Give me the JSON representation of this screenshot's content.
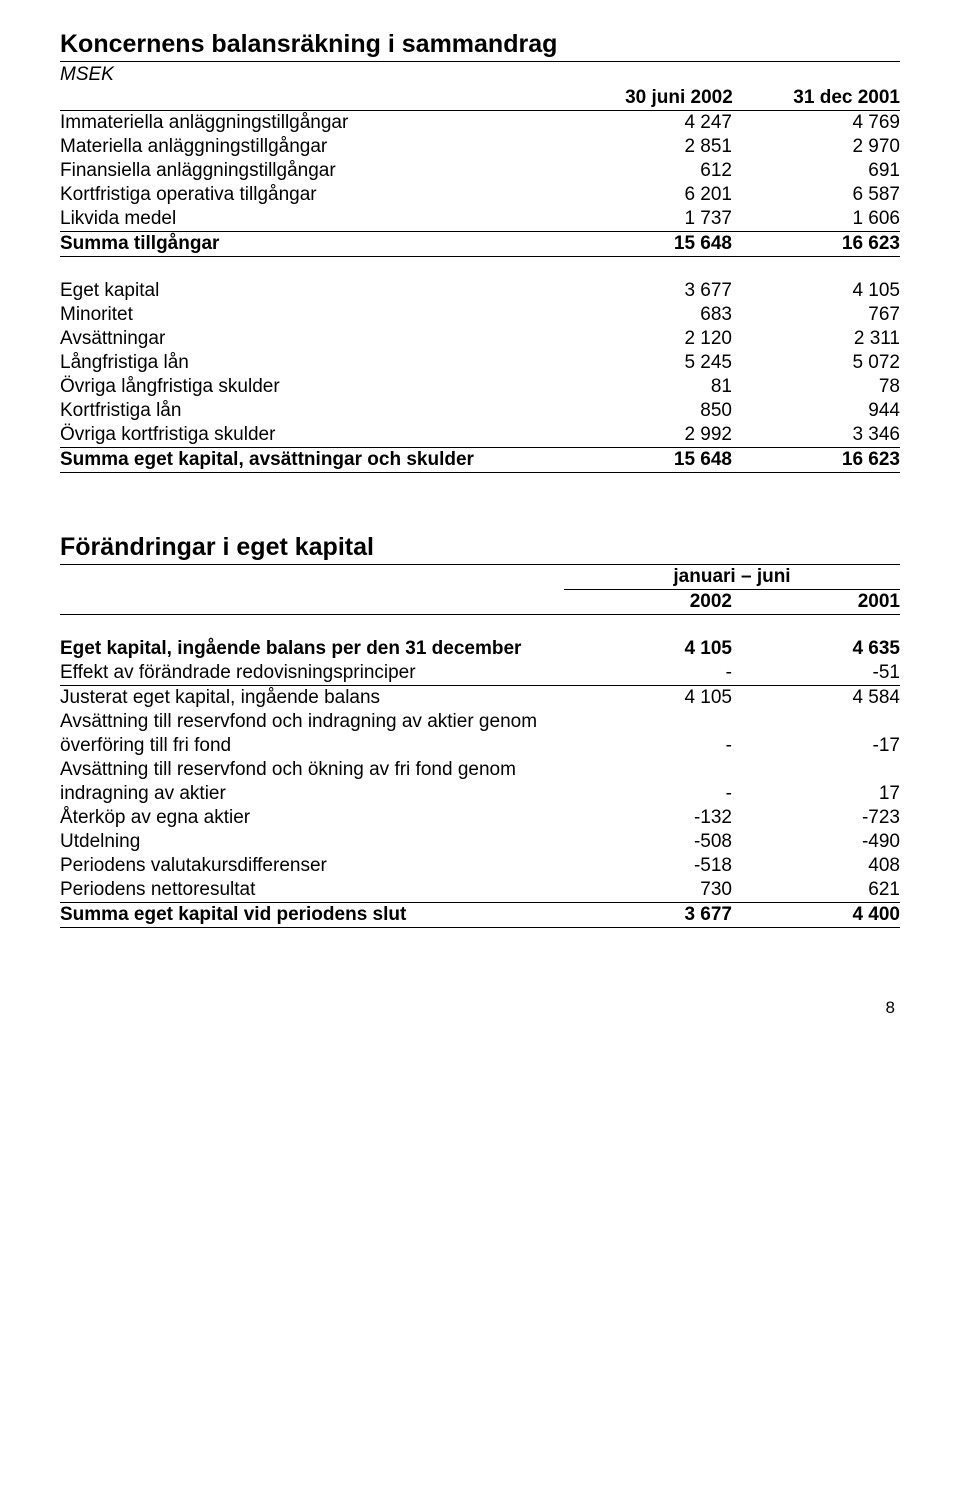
{
  "table1": {
    "title": "Koncernens balansräkning i sammandrag",
    "unit": "MSEK",
    "col_headers": [
      "30 juni 2002",
      "31 dec 2001"
    ],
    "rows_top": [
      {
        "label": "Immateriella anläggningstillgångar",
        "v1": "4 247",
        "v2": "4 769"
      },
      {
        "label": "Materiella anläggningstillgångar",
        "v1": "2 851",
        "v2": "2 970"
      },
      {
        "label": "Finansiella anläggningstillgångar",
        "v1": "612",
        "v2": "691"
      },
      {
        "label": "Kortfristiga operativa tillgångar",
        "v1": "6 201",
        "v2": "6 587"
      },
      {
        "label": "Likvida medel",
        "v1": "1 737",
        "v2": "1 606"
      }
    ],
    "sum_top": {
      "label": "Summa tillgångar",
      "v1": "15 648",
      "v2": "16 623"
    },
    "rows_bottom": [
      {
        "label": "Eget kapital",
        "v1": "3 677",
        "v2": "4 105"
      },
      {
        "label": "Minoritet",
        "v1": "683",
        "v2": "767"
      },
      {
        "label": "Avsättningar",
        "v1": "2 120",
        "v2": "2 311"
      },
      {
        "label": "Långfristiga lån",
        "v1": "5 245",
        "v2": "5 072"
      },
      {
        "label": "Övriga långfristiga skulder",
        "v1": "81",
        "v2": "78"
      },
      {
        "label": "Kortfristiga lån",
        "v1": "850",
        "v2": "944"
      },
      {
        "label": "Övriga kortfristiga skulder",
        "v1": "2 992",
        "v2": "3 346"
      }
    ],
    "sum_bottom": {
      "label": "Summa eget kapital, avsättningar och skulder",
      "v1": "15 648",
      "v2": "16 623"
    }
  },
  "table2": {
    "title": "Förändringar i eget kapital",
    "span_header": "januari – juni",
    "col_headers": [
      "2002",
      "2001"
    ],
    "rows": [
      {
        "label": "Eget kapital, ingående balans per den 31 december",
        "v1": "4 105",
        "v2": "4 635",
        "bold": true
      },
      {
        "label": "Effekt av förändrade redovisningsprinciper",
        "v1": "-",
        "v2": "-51"
      },
      {
        "label": "Justerat eget kapital, ingående balans",
        "v1": "4 105",
        "v2": "4 584",
        "rule": true
      },
      {
        "label": "Avsättning till reservfond och indragning av aktier genom överföring till fri fond",
        "v1": "-",
        "v2": "-17",
        "wrap": true
      },
      {
        "label": "Avsättning till reservfond och ökning av fri fond genom indragning av aktier",
        "v1": "-",
        "v2": "17",
        "wrap": true
      },
      {
        "label": "Återköp av egna aktier",
        "v1": "-132",
        "v2": "-723"
      },
      {
        "label": "Utdelning",
        "v1": "-508",
        "v2": "-490"
      },
      {
        "label": "Periodens valutakursdifferenser",
        "v1": "-518",
        "v2": "408"
      },
      {
        "label": "Periodens nettoresultat",
        "v1": "730",
        "v2": "621"
      }
    ],
    "sum": {
      "label": "Summa eget kapital vid periodens slut",
      "v1": "3 677",
      "v2": "4 400"
    }
  },
  "page_number": "8"
}
